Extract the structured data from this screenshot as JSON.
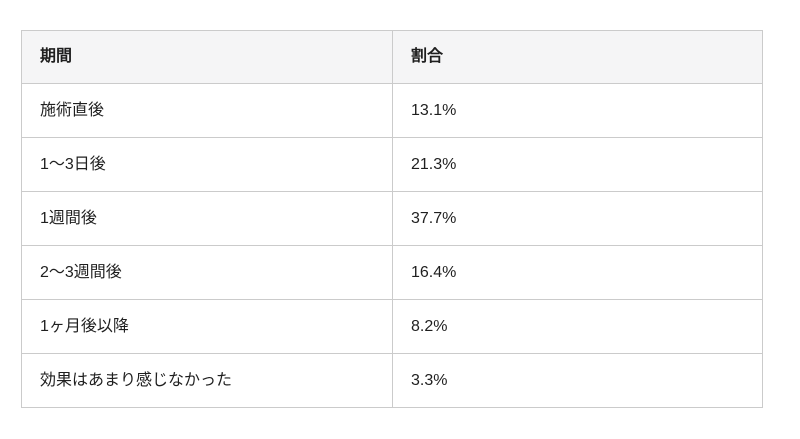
{
  "chart_data": {
    "type": "table",
    "columns": [
      "期間",
      "割合"
    ],
    "categories": [
      "施術直後",
      "1〜3日後",
      "1週間後",
      "2〜3週間後",
      "1ヶ月後以降",
      "効果はあまり感じなかった"
    ],
    "values": [
      13.1,
      21.3,
      37.7,
      16.4,
      8.2,
      3.3
    ],
    "unit": "%"
  },
  "table": {
    "headers": {
      "period": "期間",
      "ratio": "割合"
    },
    "rows": [
      {
        "period": "施術直後",
        "ratio": "13.1%"
      },
      {
        "period": "1〜3日後",
        "ratio": "21.3%"
      },
      {
        "period": "1週間後",
        "ratio": "37.7%"
      },
      {
        "period": "2〜3週間後",
        "ratio": "16.4%"
      },
      {
        "period": "1ヶ月後以降",
        "ratio": "8.2%"
      },
      {
        "period": "効果はあまり感じなかった",
        "ratio": "3.3%"
      }
    ]
  },
  "colors": {
    "header_bg": "#f5f5f6",
    "border": "#cbcbcb",
    "text": "#1f1f1f",
    "row_bg": "#ffffff",
    "page_bg": "#ffffff"
  }
}
